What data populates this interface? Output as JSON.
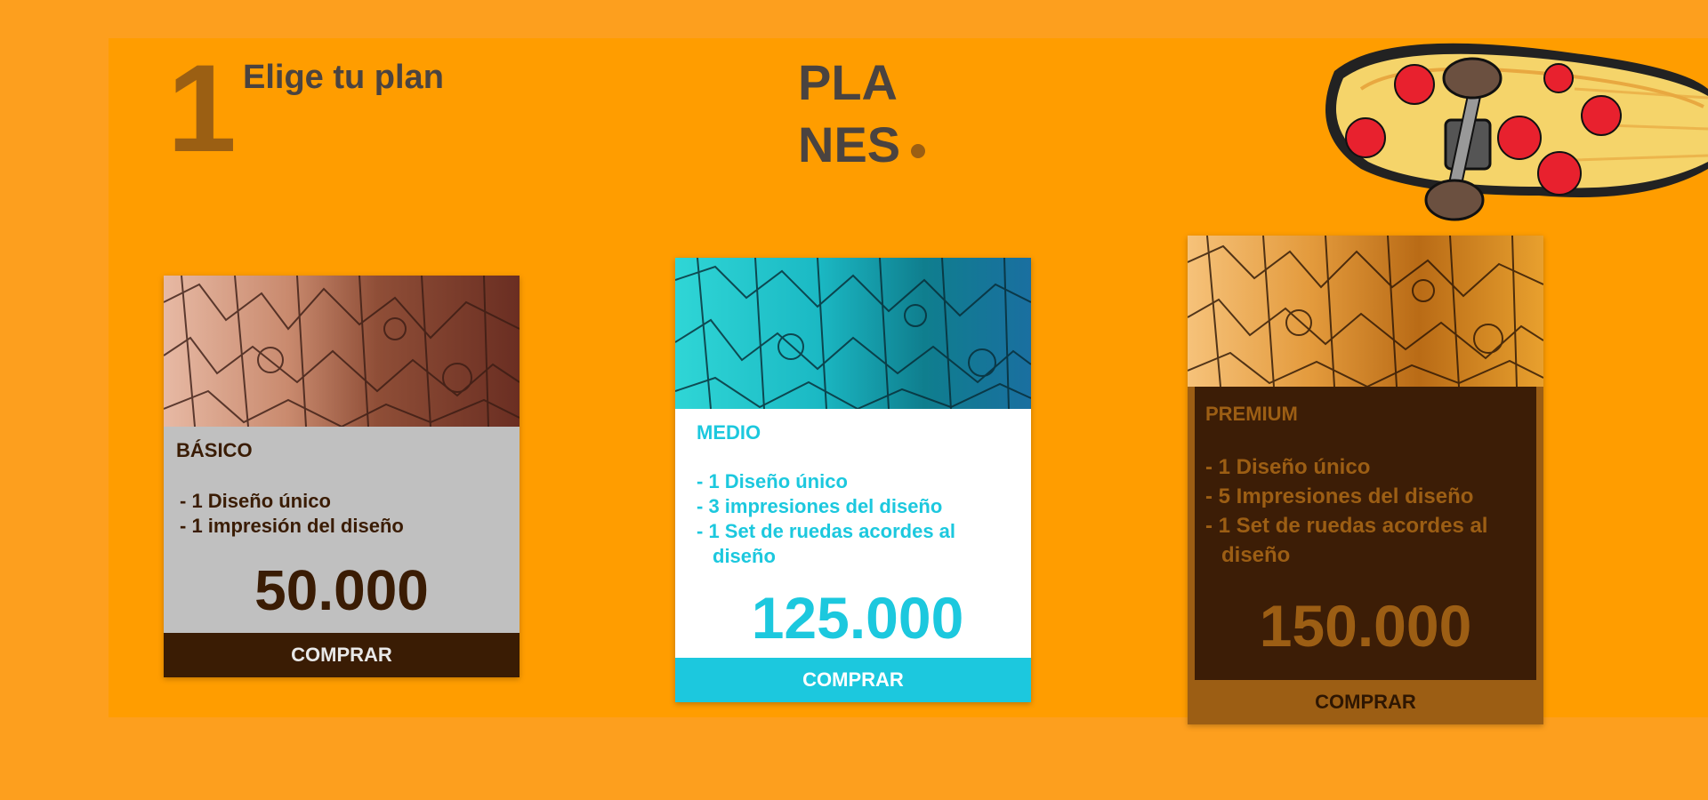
{
  "header": {
    "step_number": "1",
    "step_label": "Elige tu plan",
    "title_line1": "PLA",
    "title_line2": "NES"
  },
  "colors": {
    "background": "#FF9D00",
    "dark_brown": "#3A1C04",
    "brown": "#9C5E14",
    "cyan": "#1CC8DE",
    "gray": "#C0C0C0",
    "text_dark": "#4A4340"
  },
  "icons": {
    "mascot": "pizza-skateboard-illustration"
  },
  "plans": [
    {
      "name": "BÁSICO",
      "features": [
        "- 1 Diseño único",
        "- 1 impresión del diseño"
      ],
      "price": "50.000",
      "button": "COMPRAR"
    },
    {
      "name": "MEDIO",
      "features": [
        "- 1 Diseño único",
        "- 3 impresiones del diseño",
        "- 1 Set de ruedas acordes al diseño"
      ],
      "price": "125.000",
      "button": "COMPRAR"
    },
    {
      "name": "PREMIUM",
      "features": [
        "- 1 Diseño único",
        "- 5 Impresiones del diseño",
        "- 1 Set de ruedas acordes al diseño"
      ],
      "price": "150.000",
      "button": "COMPRAR"
    }
  ]
}
